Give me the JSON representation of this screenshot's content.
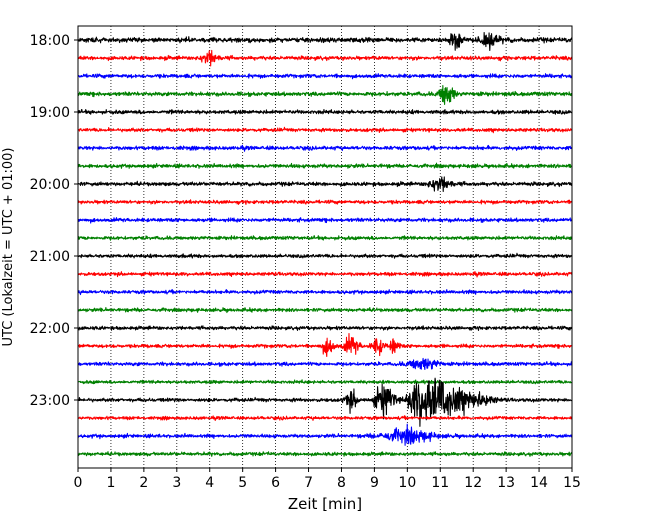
{
  "chart_data": {
    "type": "line",
    "title": "",
    "xlabel": "Zeit  [min]",
    "ylabel": "UTC (Lokalzeit = UTC + 01:00)",
    "xlim": [
      0,
      15
    ],
    "x_ticks": [
      0,
      1,
      2,
      3,
      4,
      5,
      6,
      7,
      8,
      9,
      10,
      11,
      12,
      13,
      14,
      15
    ],
    "y_tick_labels": [
      "18:00",
      "19:00",
      "20:00",
      "21:00",
      "22:00",
      "23:00"
    ],
    "trace_interval_min": 15,
    "grid": "vertical-dotted",
    "trace_colors": [
      "#000000",
      "#ff0000",
      "#0000ff",
      "#008000"
    ],
    "traces": [
      {
        "start": "18:00",
        "color": "#000000",
        "amplitude": 0.16,
        "events": [
          [
            11.5,
            0.12,
            0.8
          ],
          [
            12.5,
            0.2,
            0.4
          ]
        ]
      },
      {
        "start": "18:15",
        "color": "#ff0000",
        "amplitude": 0.13,
        "events": [
          [
            4.0,
            0.15,
            0.6
          ]
        ]
      },
      {
        "start": "18:30",
        "color": "#0000ff",
        "amplitude": 0.13,
        "events": []
      },
      {
        "start": "18:45",
        "color": "#008000",
        "amplitude": 0.14,
        "events": [
          [
            11.2,
            0.15,
            0.8
          ]
        ]
      },
      {
        "start": "19:00",
        "color": "#000000",
        "amplitude": 0.13,
        "events": []
      },
      {
        "start": "19:15",
        "color": "#ff0000",
        "amplitude": 0.12,
        "events": []
      },
      {
        "start": "19:30",
        "color": "#0000ff",
        "amplitude": 0.13,
        "events": []
      },
      {
        "start": "19:45",
        "color": "#008000",
        "amplitude": 0.13,
        "events": []
      },
      {
        "start": "20:00",
        "color": "#000000",
        "amplitude": 0.13,
        "events": [
          [
            11.0,
            0.2,
            0.6
          ]
        ]
      },
      {
        "start": "20:15",
        "color": "#ff0000",
        "amplitude": 0.12,
        "events": []
      },
      {
        "start": "20:30",
        "color": "#0000ff",
        "amplitude": 0.13,
        "events": []
      },
      {
        "start": "20:45",
        "color": "#008000",
        "amplitude": 0.12,
        "events": []
      },
      {
        "start": "21:00",
        "color": "#000000",
        "amplitude": 0.12,
        "events": []
      },
      {
        "start": "21:15",
        "color": "#ff0000",
        "amplitude": 0.12,
        "events": []
      },
      {
        "start": "21:30",
        "color": "#0000ff",
        "amplitude": 0.12,
        "events": []
      },
      {
        "start": "21:45",
        "color": "#008000",
        "amplitude": 0.12,
        "events": []
      },
      {
        "start": "22:00",
        "color": "#000000",
        "amplitude": 0.12,
        "events": []
      },
      {
        "start": "22:15",
        "color": "#ff0000",
        "amplitude": 0.12,
        "events": [
          [
            7.6,
            0.12,
            0.6
          ],
          [
            8.3,
            0.15,
            0.7
          ],
          [
            9.1,
            0.12,
            0.6
          ],
          [
            9.6,
            0.1,
            0.5
          ]
        ]
      },
      {
        "start": "22:30",
        "color": "#0000ff",
        "amplitude": 0.12,
        "events": [
          [
            10.5,
            0.3,
            0.4
          ]
        ]
      },
      {
        "start": "22:45",
        "color": "#008000",
        "amplitude": 0.11,
        "events": []
      },
      {
        "start": "23:00",
        "color": "#000000",
        "amplitude": 0.12,
        "events": [
          [
            8.3,
            0.12,
            0.7
          ],
          [
            9.3,
            0.2,
            1.1
          ],
          [
            10.3,
            0.2,
            1.2
          ],
          [
            10.8,
            0.3,
            1.6
          ],
          [
            11.5,
            0.3,
            0.8
          ],
          [
            12.2,
            0.3,
            0.4
          ]
        ]
      },
      {
        "start": "23:15",
        "color": "#ff0000",
        "amplitude": 0.11,
        "events": []
      },
      {
        "start": "23:30",
        "color": "#0000ff",
        "amplitude": 0.12,
        "events": [
          [
            10.0,
            0.5,
            0.5
          ]
        ]
      },
      {
        "start": "23:45",
        "color": "#008000",
        "amplitude": 0.12,
        "events": []
      }
    ]
  }
}
